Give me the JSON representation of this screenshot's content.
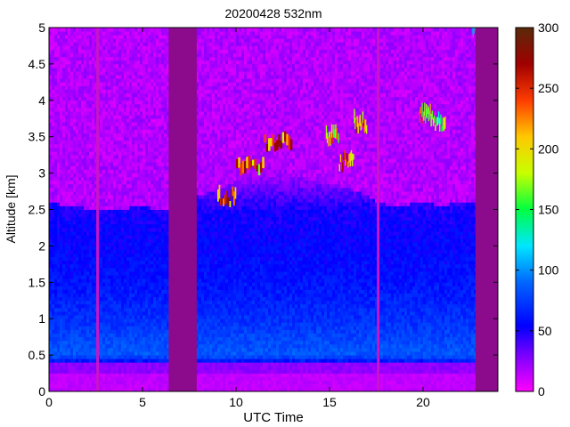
{
  "chart_data": {
    "type": "heatmap",
    "title": "20200428 532nm",
    "xlabel": "UTC Time",
    "ylabel": "Altitude [km]",
    "xlim": [
      0,
      24
    ],
    "ylim": [
      0,
      5
    ],
    "x_ticks": [
      "0",
      "5",
      "10",
      "15",
      "20"
    ],
    "x_tick_values": [
      0,
      5,
      10,
      15,
      20
    ],
    "y_ticks": [
      "0",
      "0.5",
      "1",
      "1.5",
      "2",
      "2.5",
      "3",
      "3.5",
      "4",
      "4.5",
      "5"
    ],
    "y_tick_values": [
      0,
      0.5,
      1,
      1.5,
      2,
      2.5,
      3,
      3.5,
      4,
      4.5,
      5
    ],
    "colorbar": {
      "range": [
        0,
        300
      ],
      "ticks": [
        "0",
        "50",
        "100",
        "150",
        "200",
        "250",
        "300"
      ],
      "tick_values": [
        0,
        50,
        100,
        150,
        200,
        250,
        300
      ]
    },
    "data_gaps_utc": [
      [
        6.4,
        7.9
      ],
      [
        22.8,
        24.0
      ]
    ],
    "profile_breaks_utc": [
      2.6,
      17.6
    ],
    "boundary_layer_top_km": [
      [
        0.0,
        2.6
      ],
      [
        1.0,
        2.55
      ],
      [
        2.6,
        2.5
      ],
      [
        4.0,
        2.5
      ],
      [
        4.5,
        2.55
      ],
      [
        6.4,
        2.5
      ],
      [
        7.9,
        2.7
      ],
      [
        9.0,
        2.75
      ],
      [
        10.0,
        2.9
      ],
      [
        11.0,
        3.0
      ],
      [
        12.0,
        3.1
      ],
      [
        13.0,
        3.0
      ],
      [
        14.0,
        2.9
      ],
      [
        15.0,
        2.85
      ],
      [
        16.0,
        2.8
      ],
      [
        17.0,
        2.7
      ],
      [
        17.6,
        2.6
      ],
      [
        18.5,
        2.55
      ],
      [
        20.0,
        2.6
      ],
      [
        21.0,
        2.55
      ],
      [
        22.0,
        2.6
      ],
      [
        22.8,
        2.6
      ]
    ],
    "cloud_layers": [
      {
        "x_start": 9.0,
        "x_end": 10.0,
        "altitude_km": 2.6,
        "signal_max": 300
      },
      {
        "x_start": 10.0,
        "x_end": 11.5,
        "altitude_km": 3.05,
        "signal_max": 300
      },
      {
        "x_start": 11.5,
        "x_end": 13.0,
        "altitude_km": 3.35,
        "signal_max": 300
      },
      {
        "x_start": 14.8,
        "x_end": 15.5,
        "altitude_km": 3.4,
        "signal_max": 250
      },
      {
        "x_start": 15.5,
        "x_end": 16.3,
        "altitude_km": 3.1,
        "signal_max": 300
      },
      {
        "x_start": 16.3,
        "x_end": 17.0,
        "altitude_km": 3.6,
        "signal_max": 300
      },
      {
        "x_start": 19.8,
        "x_end": 20.4,
        "altitude_km": 3.75,
        "signal_max": 250
      },
      {
        "x_start": 20.4,
        "x_end": 21.2,
        "altitude_km": 3.65,
        "signal_max": 200
      },
      {
        "x_start": 22.6,
        "x_end": 22.8,
        "altitude_km": 4.95,
        "signal_max": 150
      }
    ],
    "near_surface_layer_km": [
      0.25,
      0.42
    ],
    "signal_by_altitude": {
      "altitude_km": [
        0.0,
        0.25,
        0.35,
        0.5,
        1.0,
        1.5,
        2.0,
        2.5,
        3.0,
        4.0,
        5.0
      ],
      "signal": [
        15,
        12,
        40,
        85,
        70,
        60,
        55,
        50,
        20,
        12,
        10
      ]
    }
  }
}
